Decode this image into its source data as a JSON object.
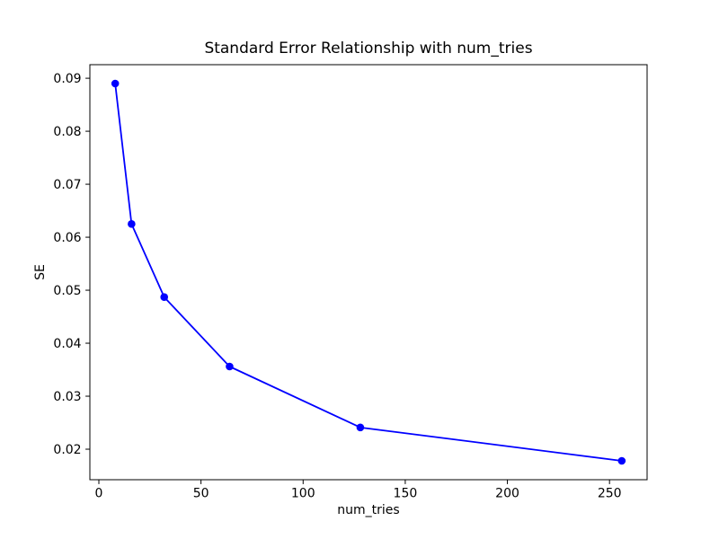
{
  "chart_data": {
    "type": "line",
    "title": "Standard Error Relationship with num_tries",
    "xlabel": "num_tries",
    "ylabel": "SE",
    "x": [
      8,
      16,
      32,
      64,
      128,
      256
    ],
    "y": [
      0.089,
      0.0625,
      0.0487,
      0.0356,
      0.0241,
      0.0178
    ],
    "line_color": "#0000ff",
    "marker": "circle",
    "text_color": "#000000",
    "background_color": "#ffffff",
    "xlim": [
      -4.4,
      268.4
    ],
    "ylim": [
      0.01424,
      0.09256
    ],
    "xticks": {
      "values": [
        0,
        50,
        100,
        150,
        200,
        250
      ],
      "labels": [
        "0",
        "50",
        "100",
        "150",
        "200",
        "250"
      ]
    },
    "yticks": {
      "values": [
        0.02,
        0.03,
        0.04,
        0.05,
        0.06,
        0.07,
        0.08,
        0.09
      ],
      "labels": [
        "0.02",
        "0.03",
        "0.04",
        "0.05",
        "0.06",
        "0.07",
        "0.08",
        "0.09"
      ]
    },
    "grid": false,
    "legend_position": "none"
  }
}
